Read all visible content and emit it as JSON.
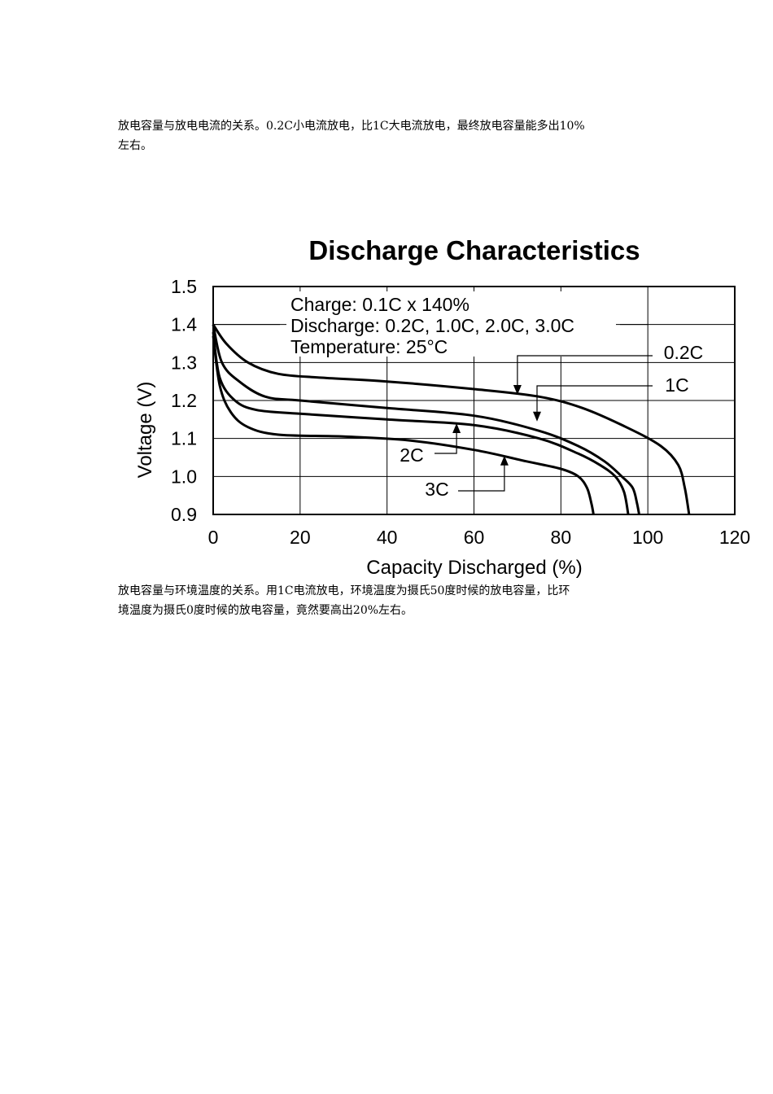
{
  "paragraphs": [
    "放电容量与放电电流的关系。0.2C小电流放电，比1C大电流放电，最终放电容量能多出10%\n左右。",
    "放电容量与环境温度的关系。用1C电流放电，环境温度为摄氏50度时候的放电容量，比环\n境温度为摄氏0度时候的放电容量，竟然要高出20%左右。"
  ],
  "chart_data": {
    "type": "line",
    "title": "Discharge Characteristics",
    "xlabel": "Capacity Discharged (%)",
    "ylabel": "Voltage (V)",
    "xlim": [
      0,
      120
    ],
    "ylim": [
      0.9,
      1.5
    ],
    "xticks": [
      0,
      20,
      40,
      60,
      80,
      100,
      120
    ],
    "yticks": [
      "0.9",
      "1.0",
      "1.1",
      "1.2",
      "1.3",
      "1.4",
      "1.5"
    ],
    "grid": true,
    "annotations": [
      "Charge: 0.1C x 140%",
      "Discharge: 0.2C, 1.0C, 2.0C, 3.0C",
      "Temperature: 25°C"
    ],
    "series": [
      {
        "name": "0.2C",
        "x": [
          0,
          3,
          8,
          15,
          25,
          40,
          60,
          75,
          85,
          95,
          103,
          107,
          108.5,
          109.5
        ],
        "y": [
          1.4,
          1.35,
          1.3,
          1.27,
          1.26,
          1.25,
          1.23,
          1.21,
          1.18,
          1.13,
          1.08,
          1.03,
          0.97,
          0.9
        ]
      },
      {
        "name": "1C",
        "x": [
          0,
          2,
          6,
          12,
          20,
          40,
          60,
          75,
          84,
          90,
          94,
          96.5,
          97.5,
          98
        ],
        "y": [
          1.4,
          1.3,
          1.25,
          1.21,
          1.2,
          1.18,
          1.16,
          1.12,
          1.08,
          1.04,
          1.0,
          0.97,
          0.93,
          0.9
        ]
      },
      {
        "name": "2C",
        "x": [
          0,
          1.5,
          5,
          10,
          20,
          40,
          60,
          75,
          84,
          89,
          92.5,
          94.5,
          95.5
        ],
        "y": [
          1.38,
          1.26,
          1.2,
          1.175,
          1.165,
          1.15,
          1.135,
          1.1,
          1.06,
          1.03,
          1.0,
          0.96,
          0.9
        ]
      },
      {
        "name": "3C",
        "x": [
          0,
          1.5,
          4,
          8,
          15,
          30,
          45,
          60,
          72,
          80,
          84,
          86,
          87,
          87.5
        ],
        "y": [
          1.37,
          1.24,
          1.17,
          1.13,
          1.11,
          1.105,
          1.095,
          1.07,
          1.04,
          1.02,
          1.0,
          0.97,
          0.93,
          0.9
        ]
      }
    ],
    "series_labels": [
      {
        "name": "0.2C",
        "arrow_x": 70,
        "arrow_y": 1.215
      },
      {
        "name": "1C",
        "arrow_x": 74.5,
        "arrow_y": 1.145
      },
      {
        "name": "2C",
        "arrow_x": 56,
        "arrow_y": 1.14
      },
      {
        "name": "3C",
        "arrow_x": 67,
        "arrow_y": 1.055
      }
    ]
  }
}
